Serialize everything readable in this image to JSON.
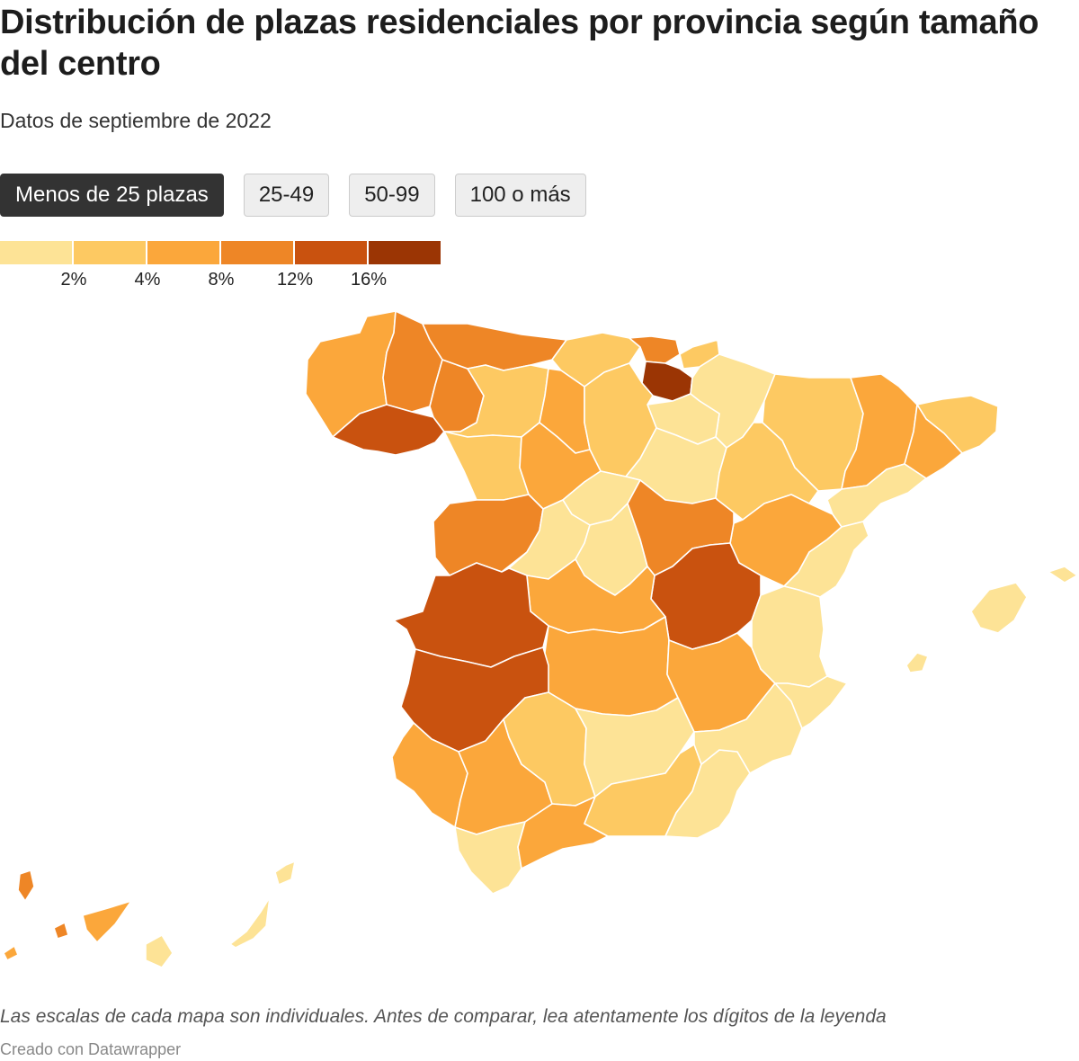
{
  "title": "Distribución de plazas residenciales por provincia según tamaño del centro",
  "subtitle": "Datos de septiembre de 2022",
  "tabs": [
    {
      "label": "Menos de 25 plazas",
      "active": true
    },
    {
      "label": "25-49",
      "active": false
    },
    {
      "label": "50-99",
      "active": false
    },
    {
      "label": "100 o más",
      "active": false
    }
  ],
  "legend": {
    "colors": [
      "#fde396",
      "#fdc962",
      "#fba73b",
      "#ee8626",
      "#c9520f",
      "#9b3504"
    ],
    "labels": [
      "2%",
      "4%",
      "8%",
      "12%",
      "16%"
    ]
  },
  "footer": {
    "note": "Las escalas de cada mapa son individuales. Antes de comparar, lea atentamente los dígitos de la leyenda",
    "credit": "Creado con Datawrapper"
  }
}
